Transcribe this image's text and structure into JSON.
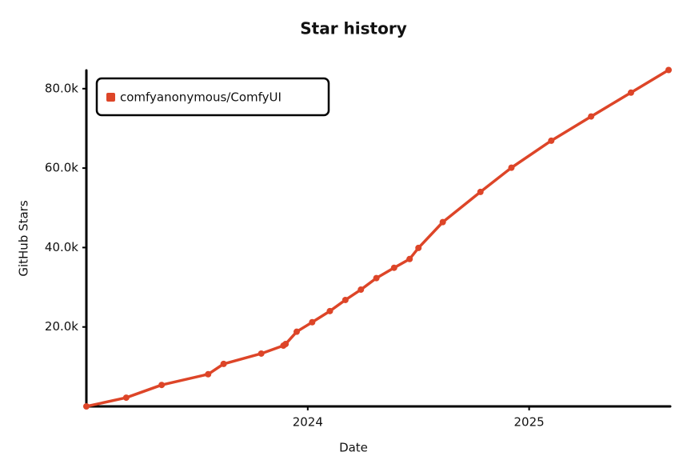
{
  "chart_data": {
    "type": "line",
    "title": "Star history",
    "x_label": "Date",
    "y_label": "GitHub Stars",
    "x": [
      2023.0,
      2023.18,
      2023.34,
      2023.55,
      2023.62,
      2023.79,
      2023.89,
      2023.9,
      2023.95,
      2024.02,
      2024.1,
      2024.17,
      2024.24,
      2024.31,
      2024.39,
      2024.46,
      2024.5,
      2024.61,
      2024.78,
      2024.92,
      2025.1,
      2025.28,
      2025.46,
      2025.63
    ],
    "series": [
      {
        "name": "comfyanonymous/ComfyUI",
        "color": "#dd4528",
        "values": [
          0,
          2200,
          5400,
          8100,
          10700,
          13300,
          15300,
          15700,
          18800,
          21200,
          24000,
          26800,
          29400,
          32300,
          34900,
          37100,
          39900,
          46400,
          54000,
          60100,
          66900,
          73000,
          79000,
          84700
        ]
      }
    ],
    "xlim": [
      2023.0,
      2025.63
    ],
    "xticks": [
      2024,
      2025
    ],
    "ylim": [
      0,
      85000
    ],
    "yticks": [
      {
        "value": 20000,
        "label": "20.0k"
      },
      {
        "value": 40000,
        "label": "40.0k"
      },
      {
        "value": 60000,
        "label": "60.0k"
      },
      {
        "value": 80000,
        "label": "80.0k"
      }
    ],
    "legend": "top-left",
    "grid": false
  }
}
